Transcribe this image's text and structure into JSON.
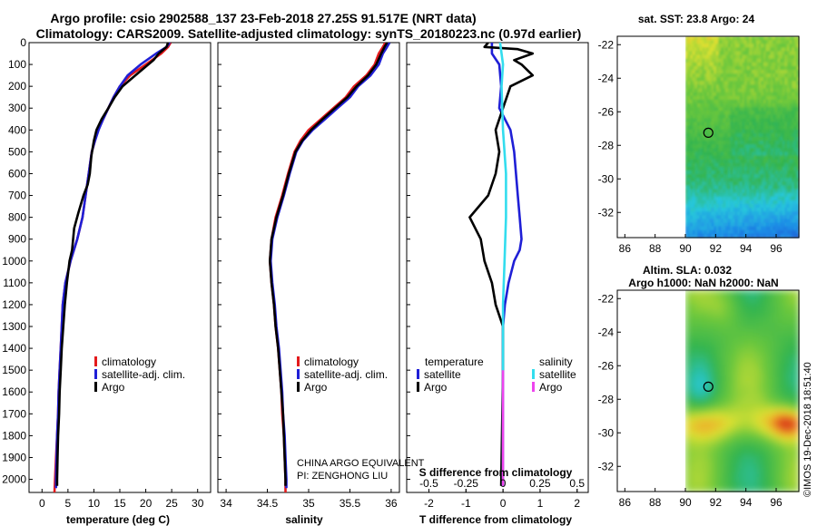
{
  "header": {
    "line1": "Argo profile: csio 2902588_137 23-Feb-2018 27.25S 91.517E (NRT data)",
    "line2": "Climatology: CARS2009. Satellite-adjusted climatology: synTS_20180223.nc (0.97d earlier)"
  },
  "colors": {
    "climatology": "#e31a1c",
    "satellite_adj": "#1f1fd6",
    "argo": "#000000",
    "salinity_satellite": "#33ddee",
    "salinity_argo": "#ee44ee"
  },
  "pressure_axis": {
    "ticks": [
      0,
      100,
      200,
      300,
      400,
      500,
      600,
      700,
      800,
      900,
      1000,
      1100,
      1200,
      1300,
      1400,
      1500,
      1600,
      1700,
      1800,
      1900,
      2000
    ],
    "range": [
      0,
      2060
    ]
  },
  "chart_data": [
    {
      "type": "line",
      "id": "temperature",
      "xlabel": "temperature (deg C)",
      "x_ticks": [
        0,
        5,
        10,
        15,
        20,
        25,
        30
      ],
      "xlim": [
        -2.5,
        32.5
      ],
      "legend": [
        "climatology",
        "satellite-adj. clim.",
        "Argo"
      ],
      "series": [
        {
          "name": "climatology",
          "color_key": "climatology",
          "points": [
            [
              24.8,
              0
            ],
            [
              24.3,
              20
            ],
            [
              23.0,
              50
            ],
            [
              20.0,
              100
            ],
            [
              17.0,
              150
            ],
            [
              15.0,
              200
            ],
            [
              13.8,
              250
            ],
            [
              12.8,
              300
            ],
            [
              11.8,
              350
            ],
            [
              10.8,
              400
            ],
            [
              10.2,
              450
            ],
            [
              9.6,
              500
            ],
            [
              9.0,
              600
            ],
            [
              8.4,
              700
            ],
            [
              7.8,
              800
            ],
            [
              6.8,
              900
            ],
            [
              5.5,
              1000
            ],
            [
              4.5,
              1100
            ],
            [
              4.0,
              1200
            ],
            [
              3.8,
              1300
            ],
            [
              3.6,
              1400
            ],
            [
              3.4,
              1500
            ],
            [
              3.2,
              1600
            ],
            [
              3.1,
              1700
            ],
            [
              2.9,
              1800
            ],
            [
              2.7,
              1900
            ],
            [
              2.5,
              2000
            ],
            [
              2.4,
              2060
            ]
          ]
        },
        {
          "name": "satellite-adj. clim.",
          "color_key": "satellite_adj",
          "points": [
            [
              24.6,
              0
            ],
            [
              24.0,
              20
            ],
            [
              22.0,
              50
            ],
            [
              19.0,
              100
            ],
            [
              16.5,
              150
            ],
            [
              15.0,
              200
            ],
            [
              13.8,
              250
            ],
            [
              12.8,
              300
            ],
            [
              11.8,
              350
            ],
            [
              10.9,
              400
            ],
            [
              10.2,
              450
            ],
            [
              9.6,
              500
            ],
            [
              9.0,
              600
            ],
            [
              8.4,
              700
            ],
            [
              7.8,
              800
            ],
            [
              6.8,
              900
            ],
            [
              5.5,
              1000
            ],
            [
              4.5,
              1100
            ],
            [
              4.0,
              1200
            ],
            [
              3.8,
              1300
            ],
            [
              3.6,
              1400
            ],
            [
              3.4,
              1500
            ],
            [
              3.2,
              1600
            ],
            [
              3.1,
              1700
            ],
            [
              2.9,
              1800
            ],
            [
              2.8,
              1900
            ],
            [
              2.7,
              2000
            ],
            [
              2.7,
              2040
            ]
          ]
        },
        {
          "name": "Argo",
          "color_key": "argo",
          "points": [
            [
              24.3,
              0
            ],
            [
              24.0,
              20
            ],
            [
              22.5,
              50
            ],
            [
              21.5,
              80
            ],
            [
              18.0,
              150
            ],
            [
              15.5,
              200
            ],
            [
              14.0,
              250
            ],
            [
              12.8,
              300
            ],
            [
              11.5,
              350
            ],
            [
              10.5,
              400
            ],
            [
              10.0,
              450
            ],
            [
              9.5,
              520
            ],
            [
              9.2,
              600
            ],
            [
              8.8,
              650
            ],
            [
              8.0,
              700
            ],
            [
              7.0,
              780
            ],
            [
              6.2,
              850
            ],
            [
              5.8,
              950
            ],
            [
              5.3,
              1000
            ],
            [
              4.8,
              1100
            ],
            [
              4.4,
              1200
            ],
            [
              4.1,
              1300
            ],
            [
              3.8,
              1400
            ],
            [
              3.6,
              1500
            ],
            [
              3.4,
              1600
            ],
            [
              3.3,
              1700
            ],
            [
              3.1,
              1800
            ],
            [
              3.0,
              1900
            ],
            [
              2.9,
              2000
            ],
            [
              2.9,
              2030
            ]
          ]
        }
      ]
    },
    {
      "type": "line",
      "id": "salinity",
      "xlabel": "salinity",
      "x_ticks": [
        34,
        34.5,
        35,
        35.5,
        36
      ],
      "x_tick_labels": [
        "34",
        "34.5",
        "35",
        "35.5",
        "36"
      ],
      "xlim": [
        33.9,
        36.1
      ],
      "legend": [
        "climatology",
        "satellite-adj. clim.",
        "Argo"
      ],
      "annotation": [
        "CHINA ARGO EQUIVALENT",
        "PI: ZENGHONG LIU"
      ],
      "series": [
        {
          "name": "climatology",
          "color_key": "climatology",
          "points": [
            [
              35.93,
              0
            ],
            [
              35.9,
              20
            ],
            [
              35.85,
              50
            ],
            [
              35.8,
              100
            ],
            [
              35.7,
              150
            ],
            [
              35.55,
              200
            ],
            [
              35.45,
              250
            ],
            [
              35.3,
              300
            ],
            [
              35.15,
              350
            ],
            [
              35.0,
              400
            ],
            [
              34.9,
              450
            ],
            [
              34.83,
              500
            ],
            [
              34.75,
              600
            ],
            [
              34.68,
              700
            ],
            [
              34.6,
              800
            ],
            [
              34.55,
              900
            ],
            [
              34.53,
              1000
            ],
            [
              34.55,
              1100
            ],
            [
              34.58,
              1200
            ],
            [
              34.6,
              1300
            ],
            [
              34.63,
              1400
            ],
            [
              34.65,
              1500
            ],
            [
              34.67,
              1600
            ],
            [
              34.68,
              1700
            ],
            [
              34.7,
              1800
            ],
            [
              34.71,
              1900
            ],
            [
              34.72,
              2000
            ],
            [
              34.72,
              2060
            ]
          ]
        },
        {
          "name": "satellite-adj. clim.",
          "color_key": "satellite_adj",
          "points": [
            [
              35.98,
              0
            ],
            [
              35.95,
              20
            ],
            [
              35.9,
              50
            ],
            [
              35.85,
              100
            ],
            [
              35.75,
              150
            ],
            [
              35.6,
              200
            ],
            [
              35.5,
              250
            ],
            [
              35.35,
              300
            ],
            [
              35.2,
              350
            ],
            [
              35.05,
              400
            ],
            [
              34.93,
              450
            ],
            [
              34.85,
              500
            ],
            [
              34.77,
              600
            ],
            [
              34.7,
              700
            ],
            [
              34.62,
              800
            ],
            [
              34.56,
              900
            ],
            [
              34.54,
              1000
            ],
            [
              34.56,
              1100
            ],
            [
              34.59,
              1200
            ],
            [
              34.61,
              1300
            ],
            [
              34.64,
              1400
            ],
            [
              34.66,
              1500
            ],
            [
              34.68,
              1600
            ],
            [
              34.69,
              1700
            ],
            [
              34.71,
              1800
            ],
            [
              34.72,
              1900
            ],
            [
              34.73,
              2000
            ],
            [
              34.73,
              2040
            ]
          ]
        },
        {
          "name": "Argo",
          "color_key": "argo",
          "points": [
            [
              35.95,
              0
            ],
            [
              35.92,
              20
            ],
            [
              35.88,
              50
            ],
            [
              35.82,
              100
            ],
            [
              35.72,
              150
            ],
            [
              35.58,
              200
            ],
            [
              35.47,
              250
            ],
            [
              35.32,
              300
            ],
            [
              35.17,
              350
            ],
            [
              35.03,
              400
            ],
            [
              34.92,
              450
            ],
            [
              34.84,
              500
            ],
            [
              34.76,
              600
            ],
            [
              34.69,
              700
            ],
            [
              34.61,
              800
            ],
            [
              34.55,
              900
            ],
            [
              34.53,
              1000
            ],
            [
              34.55,
              1100
            ],
            [
              34.58,
              1200
            ],
            [
              34.6,
              1300
            ],
            [
              34.63,
              1400
            ],
            [
              34.65,
              1500
            ],
            [
              34.67,
              1600
            ],
            [
              34.69,
              1700
            ],
            [
              34.7,
              1800
            ],
            [
              34.71,
              1900
            ],
            [
              34.72,
              2000
            ],
            [
              34.72,
              2030
            ]
          ]
        }
      ]
    },
    {
      "type": "line",
      "id": "differences",
      "xlabel": "T difference from climatology",
      "x_ticks": [
        -2,
        -1,
        0,
        1,
        2
      ],
      "xlim": [
        -2.6,
        2.3
      ],
      "top_xlabel": "S difference from climatology",
      "top_x_ticks": [
        -0.5,
        -0.25,
        0,
        0.25,
        0.5
      ],
      "top_x_tick_labels": [
        "-0.5",
        "-0.25",
        "0",
        "0.25",
        "0.5"
      ],
      "top_xlim": [
        -0.65,
        0.575
      ],
      "legend_left_title": "temperature",
      "legend_right_title": "salinity",
      "legend_left": [
        "satellite",
        "Argo"
      ],
      "legend_right": [
        "satellite",
        "Argo"
      ],
      "series": [
        {
          "name": "temperature satellite",
          "axis": "T",
          "color_key": "satellite_adj",
          "points": [
            [
              -0.3,
              0
            ],
            [
              -0.3,
              50
            ],
            [
              -0.1,
              100
            ],
            [
              -0.05,
              200
            ],
            [
              -0.1,
              300
            ],
            [
              0.2,
              400
            ],
            [
              0.3,
              500
            ],
            [
              0.35,
              600
            ],
            [
              0.4,
              700
            ],
            [
              0.45,
              800
            ],
            [
              0.5,
              900
            ],
            [
              0.45,
              950
            ],
            [
              0.3,
              1000
            ],
            [
              0.15,
              1100
            ],
            [
              0.05,
              1200
            ],
            [
              0.0,
              1300
            ],
            [
              0.0,
              1400
            ],
            [
              0.0,
              1500
            ],
            [
              0.0,
              2030
            ]
          ]
        },
        {
          "name": "temperature Argo",
          "axis": "T",
          "color_key": "argo",
          "points": [
            [
              -0.4,
              0
            ],
            [
              -0.5,
              20
            ],
            [
              0.4,
              30
            ],
            [
              0.8,
              50
            ],
            [
              0.3,
              80
            ],
            [
              0.5,
              100
            ],
            [
              0.8,
              150
            ],
            [
              0.2,
              200
            ],
            [
              0.0,
              300
            ],
            [
              -0.2,
              400
            ],
            [
              -0.1,
              500
            ],
            [
              -0.2,
              600
            ],
            [
              -0.4,
              700
            ],
            [
              -0.9,
              800
            ],
            [
              -0.6,
              900
            ],
            [
              -0.5,
              1000
            ],
            [
              -0.3,
              1100
            ],
            [
              -0.2,
              1200
            ],
            [
              0.0,
              1300
            ],
            [
              0.0,
              1500
            ],
            [
              -0.05,
              2030
            ]
          ]
        },
        {
          "name": "salinity satellite",
          "axis": "S",
          "color_key": "salinity_satellite",
          "points": [
            [
              -0.02,
              0
            ],
            [
              0.0,
              100
            ],
            [
              -0.01,
              200
            ],
            [
              0.0,
              400
            ],
            [
              0.02,
              600
            ],
            [
              0.02,
              800
            ],
            [
              0.01,
              1000
            ],
            [
              0.0,
              1200
            ],
            [
              0.0,
              1400
            ],
            [
              0.0,
              2030
            ]
          ]
        },
        {
          "name": "salinity Argo",
          "axis": "S",
          "color_key": "salinity_argo",
          "points": [
            [
              0.0,
              1500
            ],
            [
              0.0,
              2030
            ]
          ]
        }
      ]
    },
    {
      "type": "heatmap",
      "id": "sst_map",
      "title": "sat. SST: 23.8 Argo: 24",
      "x_ticks": [
        86,
        88,
        90,
        92,
        94,
        96
      ],
      "y_ticks": [
        -22,
        -24,
        -26,
        -28,
        -30,
        -32
      ],
      "xlim": [
        85.5,
        97.5
      ],
      "ylim": [
        -33.5,
        -21.5
      ],
      "data_region": [
        90,
        97.5
      ],
      "marker": {
        "lon": 91.517,
        "lat": -27.25
      }
    },
    {
      "type": "heatmap",
      "id": "sla_map",
      "title_line1": "Altim. SLA: 0.032",
      "title_line2": "Argo h1000: NaN h2000: NaN",
      "x_ticks": [
        86,
        88,
        90,
        92,
        94,
        96
      ],
      "y_ticks": [
        -22,
        -24,
        -26,
        -28,
        -30,
        -32
      ],
      "xlim": [
        85.5,
        97.5
      ],
      "ylim": [
        -33.5,
        -21.5
      ],
      "data_region": [
        90,
        97.5
      ],
      "marker": {
        "lon": 91.517,
        "lat": -27.25
      },
      "side_label": "©IMOS 19-Dec-2018 18:51:40"
    }
  ]
}
